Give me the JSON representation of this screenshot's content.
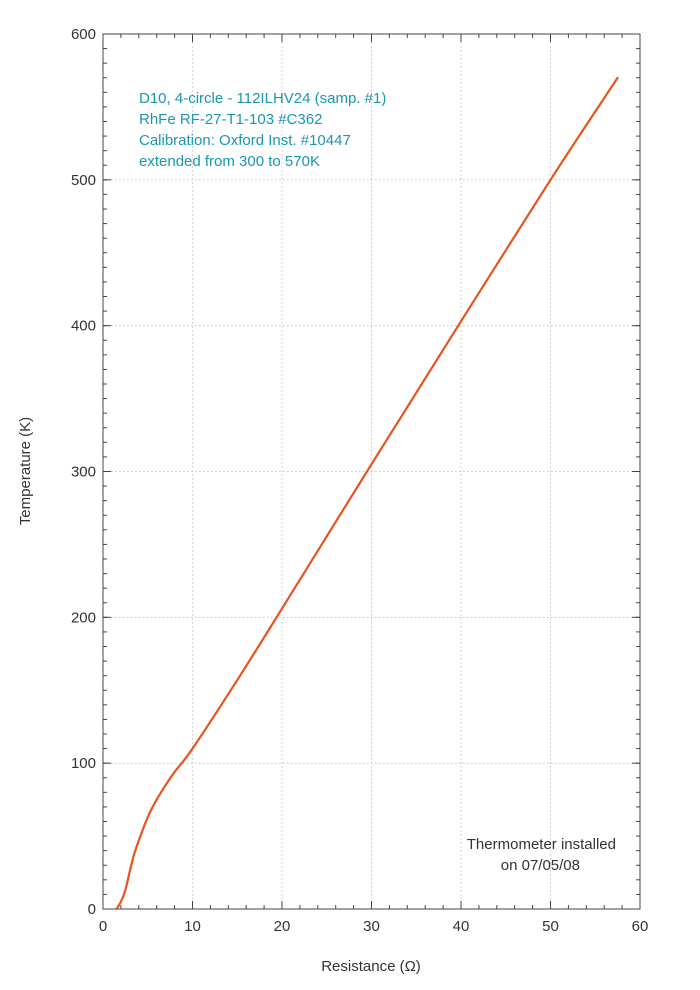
{
  "chart_data": {
    "type": "line",
    "title": "",
    "xlabel": "Resistance (Ω)",
    "ylabel": "Temperature (K)",
    "xlim": [
      0,
      60
    ],
    "ylim": [
      0,
      600
    ],
    "xticks": [
      0,
      10,
      20,
      30,
      40,
      50,
      60
    ],
    "yticks": [
      0,
      100,
      200,
      300,
      400,
      500,
      600
    ],
    "grid": true,
    "legend": "none",
    "series": [
      {
        "color": "#e8531f",
        "x": [
          1.5,
          2.0,
          2.5,
          3.0,
          3.5,
          4.0,
          5.0,
          6.0,
          7.0,
          8.0,
          10.0,
          15.0,
          20.0,
          30.0,
          40.0,
          50.0,
          57.5
        ],
        "y": [
          0,
          5,
          13,
          26,
          38,
          47,
          63,
          75,
          85,
          94,
          110,
          157,
          206,
          305,
          403,
          500,
          570
        ]
      }
    ],
    "annotations": {
      "info": [
        "D10, 4-circle - 112ILHV24 (samp. #1)",
        "RhFe RF-27-T1-103 #C362",
        "Calibration: Oxford Inst. #10447",
        "extended from 300 to 570K"
      ],
      "note": [
        "Thermometer installed",
        "on 07/05/08"
      ]
    }
  }
}
